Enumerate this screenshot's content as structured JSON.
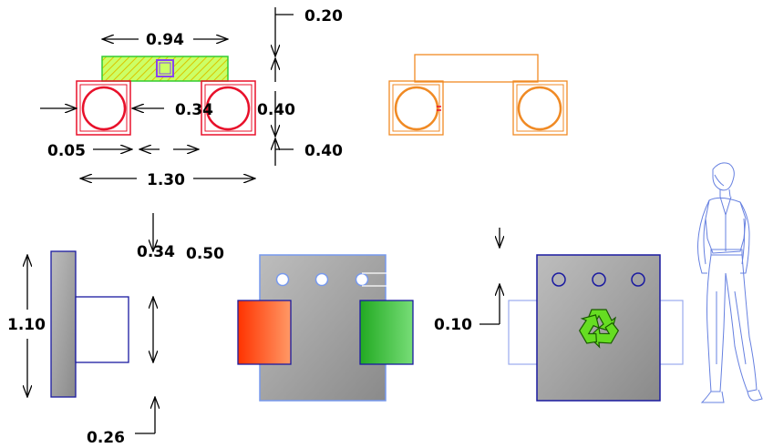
{
  "dimensions": {
    "top_width": "0.94",
    "top_height": "0.20",
    "gap_inner": "0.34",
    "box_height": "0.40",
    "offset_left": "0.05",
    "lower_height": "0.40",
    "total_width": "1.30",
    "side_height": "1.10",
    "side_depth": "0.34",
    "side_gap": "0.50",
    "side_bottom": "0.26",
    "hole_offset": "0.10"
  },
  "colors": {
    "plan_box": "#e8102a",
    "top_bar_fill": "#ccff66",
    "top_bar_stroke": "#33cc33",
    "top_bar_hatch": "#d9c400",
    "center_square": "#8844ee",
    "orange_view": "#f08a24",
    "outline_blue": "#1a1aa0",
    "light_blue": "#7799ee",
    "bin_red": "#ff4400",
    "bin_green": "#33bb33",
    "panel_gray": "#a0a0a0",
    "recycle_green": "#66dd22",
    "figure_blue": "#6680e0"
  },
  "icons": {
    "recycle": "recycle-icon",
    "figure": "person-figure-icon"
  }
}
